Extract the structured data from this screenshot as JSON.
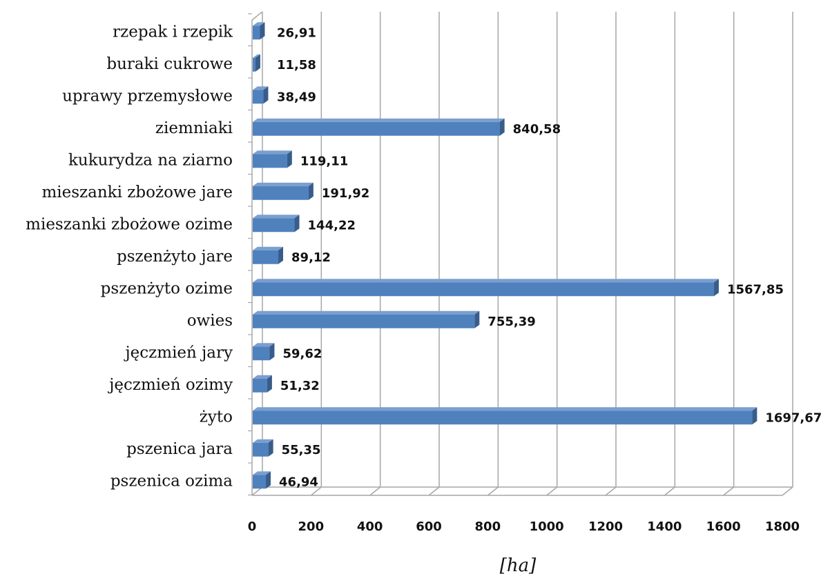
{
  "chart_data": {
    "type": "bar",
    "orientation": "horizontal",
    "categories": [
      "rzepak i rzepik",
      "buraki cukrowe",
      "uprawy przemysłowe",
      "ziemniaki",
      "kukurydza na ziarno",
      "mieszanki zbożowe jare",
      "mieszanki zbożowe ozime",
      "pszenżyto jare",
      "pszenżyto ozime",
      "owies",
      "jęczmień jary",
      "jęczmień ozimy",
      "żyto",
      "pszenica jara",
      "pszenica ozima"
    ],
    "values": [
      26.91,
      11.58,
      38.49,
      840.58,
      119.11,
      191.92,
      144.22,
      89.12,
      1567.85,
      755.39,
      59.62,
      51.32,
      1697.67,
      55.35,
      46.94
    ],
    "value_labels": [
      "26,91",
      "11,58",
      "38,49",
      "840,58",
      "119,11",
      "191,92",
      "144,22",
      "89,12",
      "1567,85",
      "755,39",
      "59,62",
      "51,32",
      "1697,67",
      "55,35",
      "46,94"
    ],
    "xticks": [
      "0",
      "200",
      "400",
      "600",
      "800",
      "1000",
      "1200",
      "1400",
      "1600",
      "1800"
    ],
    "xlim": [
      0,
      1800
    ],
    "xlabel": "[ha]",
    "title": "",
    "ylabel": "",
    "grid": true,
    "legend": "none",
    "bar_color": "#4f81bd",
    "bar_dark_color": "#385d8a",
    "bar_top_color": "#7a9fd0",
    "grid_color": "#a6a6a6"
  }
}
